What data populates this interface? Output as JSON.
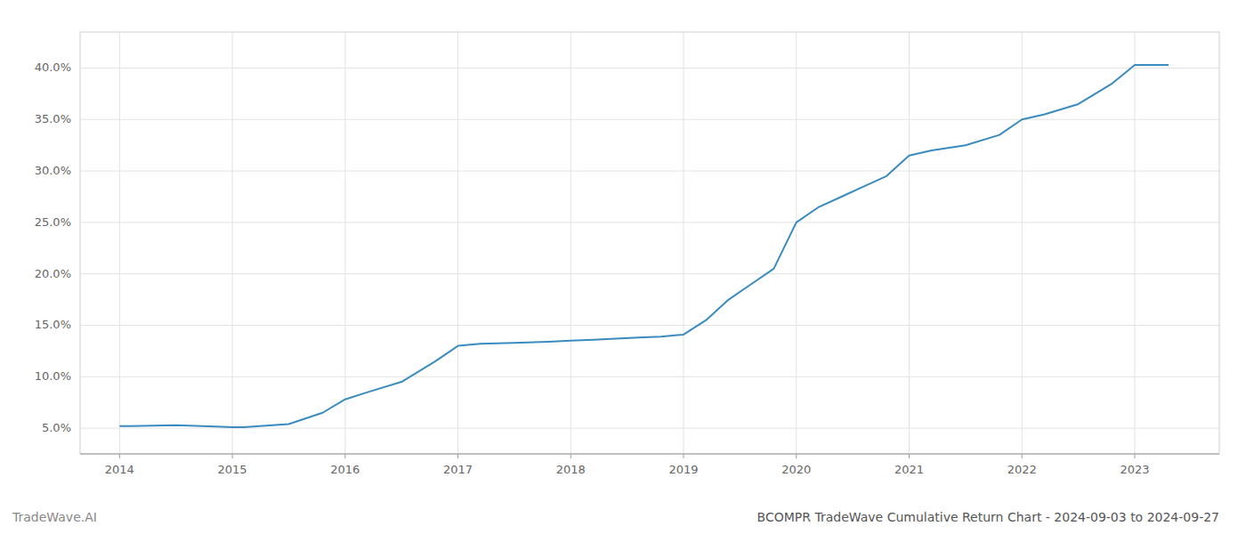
{
  "chart_data": {
    "type": "line",
    "title": "BCOMPR TradeWave Cumulative Return Chart - 2024-09-03 to 2024-09-27",
    "annotations": [
      "TradeWave.AI"
    ],
    "color": "#3a8bbf",
    "x": [
      2014.0,
      2014.1,
      2014.5,
      2015.0,
      2015.05,
      2015.1,
      2015.5,
      2015.8,
      2016.0,
      2016.2,
      2016.5,
      2016.8,
      2017.0,
      2017.2,
      2017.5,
      2017.8,
      2018.0,
      2018.2,
      2018.4,
      2018.6,
      2018.8,
      2019.0,
      2019.2,
      2019.4,
      2019.6,
      2019.8,
      2020.0,
      2020.2,
      2020.4,
      2020.6,
      2020.8,
      2021.0,
      2021.2,
      2021.5,
      2021.8,
      2022.0,
      2022.2,
      2022.5,
      2022.8,
      2023.0,
      2023.3
    ],
    "values": [
      5.2,
      5.2,
      5.3,
      5.1,
      5.1,
      5.1,
      5.4,
      6.5,
      7.8,
      8.5,
      9.5,
      11.5,
      13.0,
      13.2,
      13.3,
      13.4,
      13.5,
      13.6,
      13.7,
      13.8,
      13.9,
      14.1,
      15.5,
      17.5,
      19.0,
      20.5,
      25.0,
      26.5,
      27.5,
      28.5,
      29.5,
      31.5,
      32.0,
      32.5,
      33.5,
      35.0,
      35.5,
      36.5,
      38.5,
      40.3,
      40.3
    ],
    "xlim": [
      2013.65,
      2023.75
    ],
    "ylim": [
      2.5,
      43.5
    ],
    "xticks": [
      2014,
      2015,
      2016,
      2017,
      2018,
      2019,
      2020,
      2021,
      2022,
      2023
    ],
    "yticks": [
      {
        "value": 5.0,
        "label": "5.0%"
      },
      {
        "value": 10.0,
        "label": "10.0%"
      },
      {
        "value": 15.0,
        "label": "15.0%"
      },
      {
        "value": 20.0,
        "label": "20.0%"
      },
      {
        "value": 25.0,
        "label": "25.0%"
      },
      {
        "value": 30.0,
        "label": "30.0%"
      },
      {
        "value": 35.0,
        "label": "35.0%"
      },
      {
        "value": 40.0,
        "label": "40.0%"
      }
    ],
    "grid": true
  }
}
